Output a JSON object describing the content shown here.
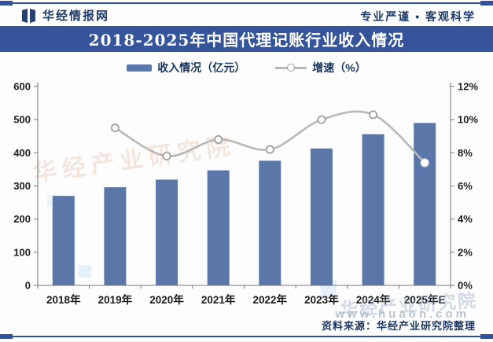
{
  "header": {
    "site": "华经情报网",
    "slogan": "专业严谨 • 客观科学"
  },
  "title": "2018-2025年中国代理记账行业收入情况",
  "legend": {
    "revenue_label": "收入情况（亿元）",
    "growth_label": "增速（%）"
  },
  "chart_data": {
    "type": "bar",
    "title": "2018-2025年中国代理记账行业收入情况",
    "categories": [
      "2018年",
      "2019年",
      "2020年",
      "2021年",
      "2022年",
      "2023年",
      "2024年",
      "2025年E"
    ],
    "series": [
      {
        "name": "收入情况（亿元）",
        "type": "bar",
        "axis": "left",
        "color": "#5b76a9",
        "values": [
          270,
          296,
          319,
          347,
          376,
          413,
          456,
          490
        ]
      },
      {
        "name": "增速（%）",
        "type": "line",
        "axis": "right",
        "color": "#b8b8b8",
        "values": [
          null,
          9.5,
          7.8,
          8.8,
          8.2,
          10.0,
          10.3,
          7.4
        ]
      }
    ],
    "left_axis": {
      "min": 0,
      "max": 600,
      "step": 100,
      "ticks": [
        "600",
        "500",
        "400",
        "300",
        "200",
        "100",
        "0"
      ]
    },
    "right_axis": {
      "min": 0,
      "max": 12,
      "step": 2,
      "ticks": [
        "12%",
        "10%",
        "8%",
        "6%",
        "4%",
        "2%",
        "0%"
      ]
    },
    "grid": false,
    "legend_position": "top",
    "xlabel": "",
    "ylabel": ""
  },
  "watermarks": {
    "diagonal": "华经产业研究院",
    "corner": "华经产业研究院",
    "url": "www.huaon.com"
  },
  "source": "资料来源：华经产业研究院整理",
  "colors": {
    "accent": "#36549a",
    "bar": "#5b76a9",
    "line": "#b8b8b8",
    "marker_stroke": "#9c9c9c",
    "text_navy": "#1e3a66"
  }
}
